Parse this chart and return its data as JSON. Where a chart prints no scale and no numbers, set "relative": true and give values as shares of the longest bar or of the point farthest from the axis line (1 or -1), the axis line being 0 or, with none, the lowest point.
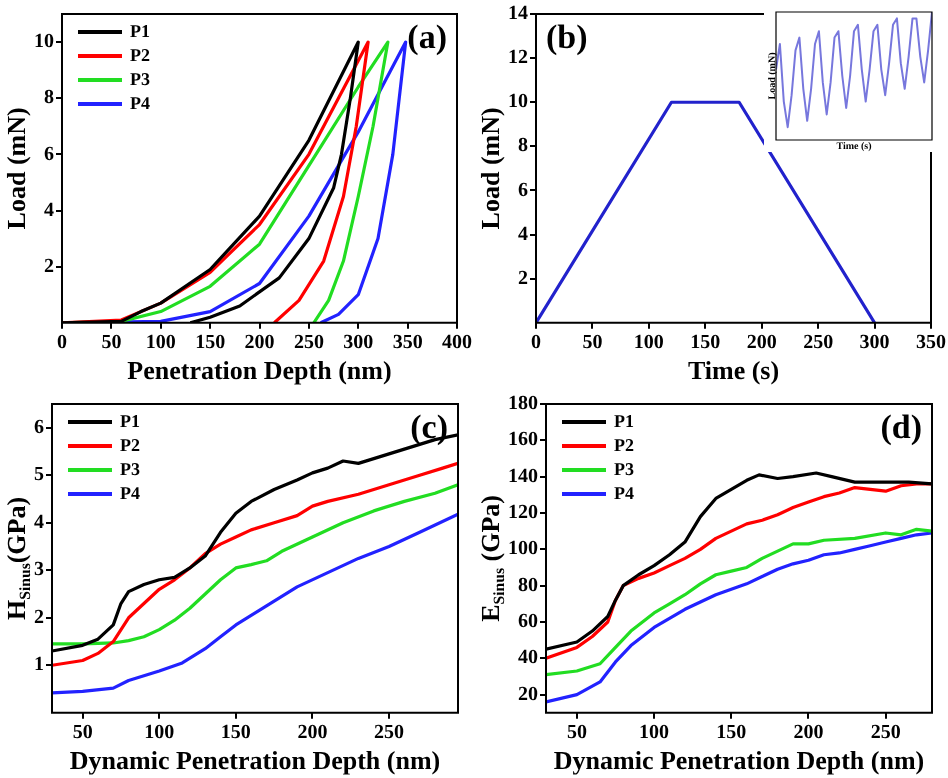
{
  "chart_data": [
    {
      "type": "line",
      "xlabel": "Penetration Depth (nm)",
      "ylabel": "Load (mN)",
      "annotations": [
        "(a)"
      ],
      "legend": "top left",
      "xlim": [
        0,
        400
      ],
      "xticks": [
        0,
        50,
        100,
        150,
        200,
        250,
        300,
        350,
        400
      ],
      "ylim": [
        0,
        11
      ],
      "yticks": [
        2,
        4,
        6,
        8,
        10
      ],
      "series": [
        {
          "name": "P1",
          "color": "#000000",
          "x": [
            0,
            60,
            80,
            100,
            150,
            200,
            250,
            300,
            292,
            283,
            275,
            250,
            220,
            180,
            150,
            130
          ],
          "values": [
            0,
            0.05,
            0.4,
            0.7,
            1.9,
            3.8,
            6.5,
            10,
            8,
            6,
            4.8,
            3,
            1.6,
            0.6,
            0.2,
            0
          ]
        },
        {
          "name": "P2",
          "color": "#ff0000",
          "x": [
            0,
            60,
            100,
            150,
            200,
            250,
            310,
            298,
            285,
            265,
            240,
            215
          ],
          "values": [
            0,
            0.1,
            0.7,
            1.8,
            3.5,
            6,
            10,
            7,
            4.5,
            2.2,
            0.8,
            0
          ]
        },
        {
          "name": "P3",
          "color": "#22dd22",
          "x": [
            0,
            60,
            100,
            150,
            200,
            250,
            300,
            330,
            315,
            300,
            285,
            270,
            255
          ],
          "values": [
            0,
            0.05,
            0.4,
            1.3,
            2.8,
            5.6,
            8.4,
            10,
            7,
            4.5,
            2.2,
            0.8,
            0
          ]
        },
        {
          "name": "P4",
          "color": "#2222ff",
          "x": [
            0,
            100,
            150,
            200,
            250,
            300,
            348,
            335,
            320,
            300,
            280,
            262
          ],
          "values": [
            0,
            0.05,
            0.4,
            1.4,
            3.8,
            6.8,
            10,
            6,
            3,
            1,
            0.3,
            0
          ]
        }
      ]
    },
    {
      "type": "line",
      "xlabel": "Time (s)",
      "ylabel": "Load (mN)",
      "annotations": [
        "(b)"
      ],
      "xlim": [
        0,
        350
      ],
      "xticks": [
        0,
        50,
        100,
        150,
        200,
        250,
        300,
        350
      ],
      "ylim": [
        0,
        14
      ],
      "yticks": [
        2,
        4,
        6,
        8,
        10,
        12,
        14
      ],
      "series": [
        {
          "color": "#2222cc",
          "x": [
            0,
            120,
            180,
            300
          ],
          "values": [
            0,
            10,
            10,
            0
          ]
        }
      ]
    },
    {
      "type": "line",
      "xlabel": "Dynamic Penetration Depth (nm)",
      "ylabel": "H$_{Sinus}$(GPa)",
      "annotations": [
        "(c)"
      ],
      "legend": "top left",
      "xlim": [
        30,
        295
      ],
      "xticks": [
        50,
        100,
        150,
        200,
        250
      ],
      "ylim": [
        0,
        6.5
      ],
      "yticks": [
        1,
        2,
        3,
        4,
        5,
        6
      ],
      "series": [
        {
          "name": "P1",
          "color": "#000000",
          "x": [
            30,
            50,
            60,
            70,
            75,
            80,
            90,
            100,
            110,
            120,
            130,
            140,
            150,
            160,
            175,
            190,
            200,
            210,
            220,
            230,
            240,
            250,
            260,
            270,
            280,
            295
          ],
          "values": [
            1.3,
            1.42,
            1.55,
            1.85,
            2.3,
            2.55,
            2.7,
            2.8,
            2.85,
            3.05,
            3.3,
            3.8,
            4.2,
            4.45,
            4.7,
            4.9,
            5.05,
            5.15,
            5.3,
            5.25,
            5.35,
            5.45,
            5.55,
            5.65,
            5.75,
            5.85
          ]
        },
        {
          "name": "P2",
          "color": "#ff0000",
          "x": [
            30,
            50,
            60,
            70,
            80,
            90,
            100,
            110,
            120,
            130,
            140,
            150,
            160,
            175,
            190,
            200,
            210,
            230,
            250,
            270,
            285,
            295
          ],
          "values": [
            1.0,
            1.1,
            1.25,
            1.5,
            2.0,
            2.3,
            2.6,
            2.8,
            3.05,
            3.35,
            3.55,
            3.7,
            3.85,
            4.0,
            4.15,
            4.35,
            4.45,
            4.6,
            4.8,
            5.0,
            5.15,
            5.25
          ]
        },
        {
          "name": "P3",
          "color": "#22dd22",
          "x": [
            30,
            50,
            70,
            80,
            90,
            100,
            110,
            120,
            130,
            140,
            150,
            160,
            170,
            180,
            200,
            220,
            240,
            260,
            280,
            295
          ],
          "values": [
            1.45,
            1.45,
            1.47,
            1.52,
            1.6,
            1.75,
            1.95,
            2.2,
            2.5,
            2.8,
            3.05,
            3.12,
            3.2,
            3.4,
            3.7,
            4.0,
            4.25,
            4.45,
            4.62,
            4.8
          ]
        },
        {
          "name": "P4",
          "color": "#2222ff",
          "x": [
            30,
            50,
            70,
            80,
            100,
            115,
            130,
            140,
            150,
            170,
            190,
            210,
            230,
            250,
            270,
            295
          ],
          "values": [
            0.42,
            0.45,
            0.52,
            0.68,
            0.88,
            1.05,
            1.35,
            1.6,
            1.85,
            2.25,
            2.65,
            2.95,
            3.25,
            3.5,
            3.8,
            4.18
          ]
        }
      ]
    },
    {
      "type": "line",
      "xlabel": "Dynamic Penetration Depth (nm)",
      "ylabel": "E$_{Sinus}$ (GPa)",
      "annotations": [
        "(d)"
      ],
      "legend": "top left",
      "xlim": [
        30,
        280
      ],
      "xticks": [
        50,
        100,
        150,
        200,
        250
      ],
      "ylim": [
        10,
        180
      ],
      "yticks": [
        20,
        40,
        60,
        80,
        100,
        120,
        140,
        160,
        180
      ],
      "series": [
        {
          "name": "P1",
          "color": "#000000",
          "x": [
            30,
            50,
            60,
            70,
            75,
            80,
            90,
            100,
            110,
            120,
            130,
            140,
            150,
            160,
            168,
            180,
            190,
            205,
            215,
            230,
            250,
            265,
            280
          ],
          "values": [
            45,
            49,
            55,
            63,
            72,
            80,
            86,
            91,
            97,
            104,
            118,
            128,
            133,
            138,
            141,
            139,
            140,
            142,
            140,
            137,
            137,
            137,
            136
          ]
        },
        {
          "name": "P2",
          "color": "#ff0000",
          "x": [
            30,
            50,
            60,
            70,
            75,
            80,
            90,
            100,
            110,
            120,
            130,
            140,
            150,
            160,
            170,
            180,
            190,
            200,
            210,
            220,
            230,
            240,
            250,
            260,
            270,
            280
          ],
          "values": [
            40,
            46,
            52,
            60,
            72,
            80,
            84,
            87,
            91,
            95,
            100,
            106,
            110,
            114,
            116,
            119,
            123,
            126,
            129,
            131,
            134,
            133,
            132,
            135,
            136,
            136
          ]
        },
        {
          "name": "P3",
          "color": "#22dd22",
          "x": [
            30,
            50,
            65,
            75,
            85,
            100,
            110,
            120,
            130,
            140,
            150,
            160,
            170,
            180,
            190,
            200,
            210,
            230,
            250,
            260,
            270,
            280
          ],
          "values": [
            31,
            33,
            37,
            46,
            55,
            65,
            70,
            75,
            81,
            86,
            88,
            90,
            95,
            99,
            103,
            103,
            105,
            106,
            109,
            108,
            111,
            110
          ]
        },
        {
          "name": "P4",
          "color": "#2222ff",
          "x": [
            30,
            50,
            65,
            75,
            85,
            100,
            110,
            120,
            130,
            140,
            150,
            160,
            170,
            180,
            190,
            200,
            210,
            220,
            230,
            240,
            250,
            260,
            270,
            280
          ],
          "values": [
            16,
            20,
            27,
            38,
            47,
            57,
            62,
            67,
            71,
            75,
            78,
            81,
            85,
            89,
            92,
            94,
            97,
            98,
            100,
            102,
            104,
            106,
            108,
            109
          ]
        }
      ]
    },
    {
      "type": "line",
      "relative": true,
      "xlabel": "Time (s)",
      "ylabel": "Load (mN)",
      "tick_labels": false,
      "categories": [
        null,
        null,
        null,
        null,
        null,
        null,
        null,
        null,
        null,
        null,
        null,
        null,
        null,
        null,
        null,
        null,
        null,
        null,
        null,
        null,
        null,
        null,
        null,
        null,
        null,
        null,
        null,
        null,
        null,
        null,
        null,
        null,
        null,
        null,
        null,
        null,
        null,
        null,
        null,
        null,
        null
      ],
      "series": [
        {
          "color": "#7777dd",
          "values": [
            0.55,
            0.75,
            0.3,
            0.1,
            0.35,
            0.7,
            0.8,
            0.4,
            0.15,
            0.4,
            0.75,
            0.85,
            0.45,
            0.2,
            0.45,
            0.8,
            0.85,
            0.5,
            0.25,
            0.5,
            0.85,
            0.9,
            0.55,
            0.3,
            0.55,
            0.85,
            0.9,
            0.55,
            0.35,
            0.6,
            0.9,
            0.95,
            0.6,
            0.4,
            0.65,
            0.95,
            0.95,
            0.65,
            0.45,
            0.7,
            1
          ]
        }
      ]
    }
  ]
}
